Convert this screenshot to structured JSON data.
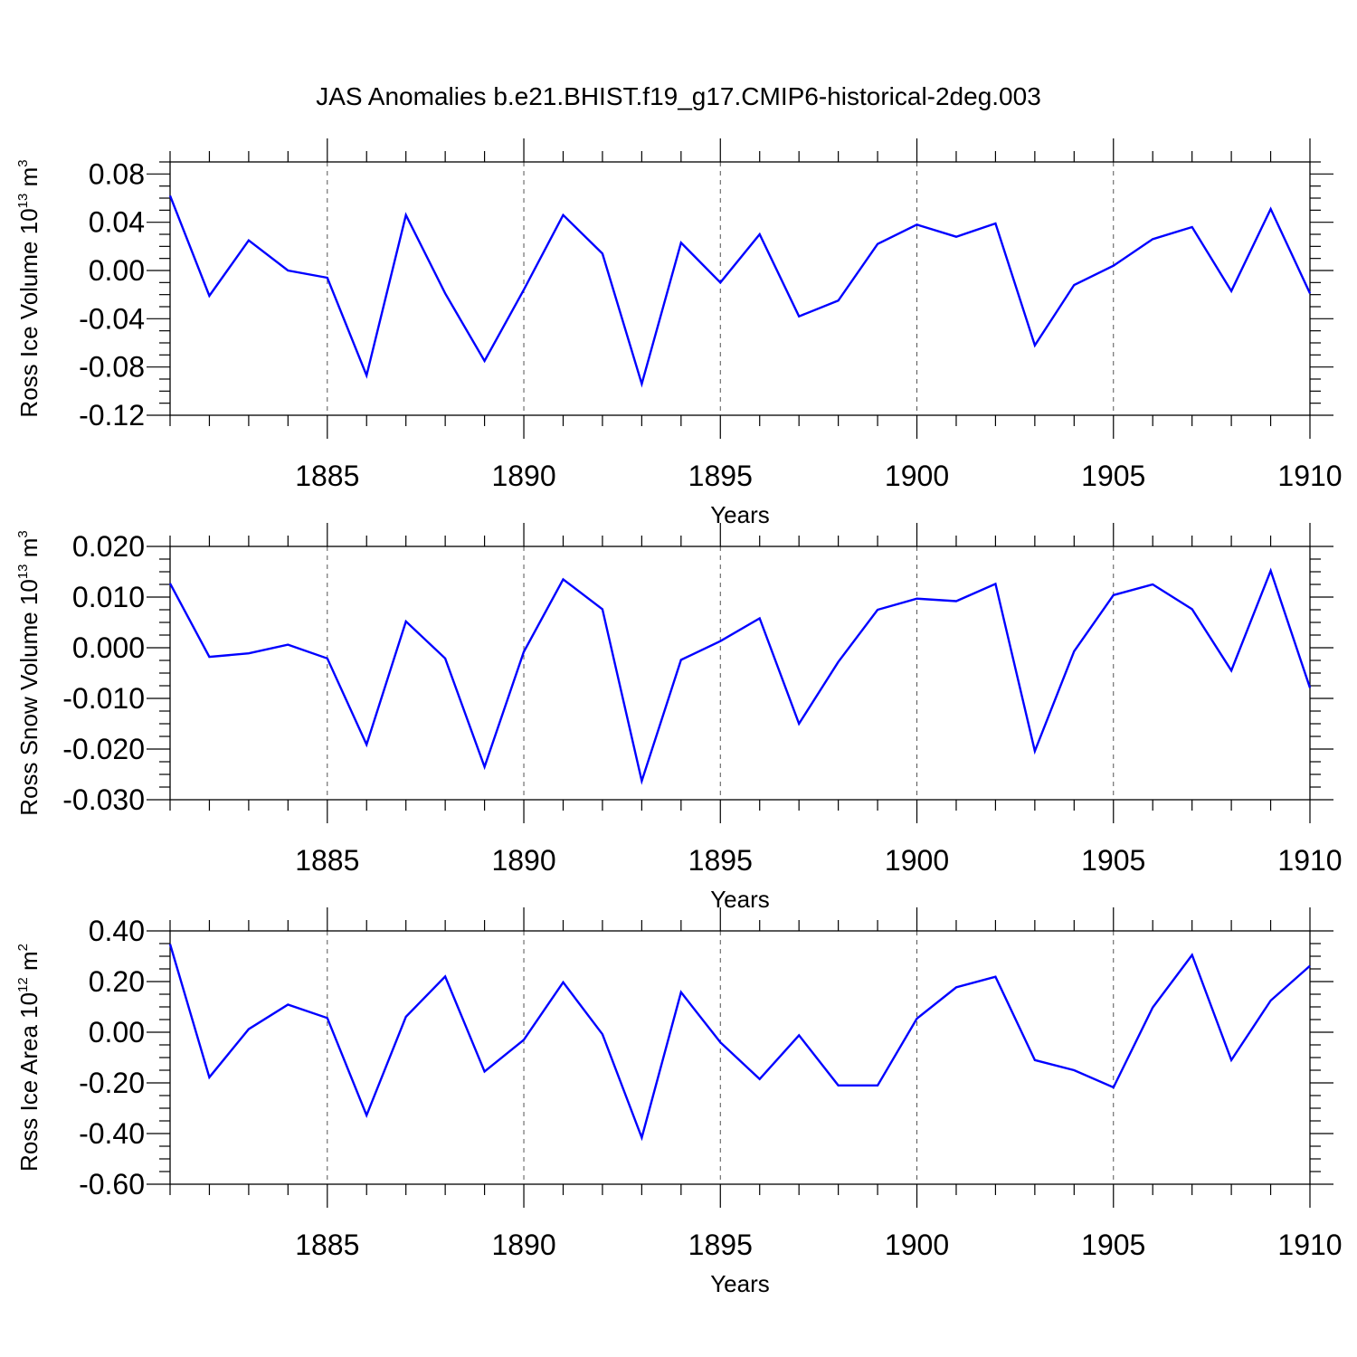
{
  "title": "JAS Anomalies b.e21.BHIST.f19_g17.CMIP6-historical-2deg.003",
  "colors": {
    "line": "#0000ff",
    "axis": "#000000",
    "grid": "#555555"
  },
  "chart_data": [
    {
      "type": "line",
      "ylabel_main": "Ross Ice Volume 10",
      "ylabel_exp": "13",
      "ylabel_unit": " m",
      "ylabel_unit_exp": "3",
      "xlabel": "Years",
      "xlim": [
        1881,
        1910
      ],
      "ylim": [
        -0.12,
        0.09
      ],
      "yticks": [
        -0.12,
        -0.08,
        -0.04,
        0.0,
        0.04,
        0.08
      ],
      "ytick_labels": [
        "-0.12",
        "-0.08",
        "-0.04",
        "0.00",
        "0.04",
        "0.08"
      ],
      "xticks": [
        1885,
        1890,
        1895,
        1900,
        1905,
        1910
      ],
      "xtick_labels": [
        "1885",
        "1890",
        "1895",
        "1900",
        "1905",
        "1910"
      ],
      "grid": "vertical dashed",
      "x": [
        1881,
        1882,
        1883,
        1884,
        1885,
        1886,
        1887,
        1888,
        1889,
        1890,
        1891,
        1892,
        1893,
        1894,
        1895,
        1896,
        1897,
        1898,
        1899,
        1900,
        1901,
        1902,
        1903,
        1904,
        1905,
        1906,
        1907,
        1908,
        1909,
        1910
      ],
      "values": [
        0.062,
        -0.021,
        0.025,
        0.0,
        -0.006,
        -0.087,
        0.046,
        -0.019,
        -0.075,
        -0.016,
        0.046,
        0.014,
        -0.094,
        0.023,
        -0.01,
        0.03,
        -0.038,
        -0.025,
        0.022,
        0.038,
        0.028,
        0.039,
        -0.062,
        -0.012,
        0.004,
        0.026,
        0.036,
        -0.017,
        0.051,
        -0.019
      ]
    },
    {
      "type": "line",
      "ylabel_main": "Ross Snow Volume 10",
      "ylabel_exp": "13",
      "ylabel_unit": " m",
      "ylabel_unit_exp": "3",
      "xlabel": "Years",
      "xlim": [
        1881,
        1910
      ],
      "ylim": [
        -0.03,
        0.02
      ],
      "yticks": [
        -0.03,
        -0.02,
        -0.01,
        0.0,
        0.01,
        0.02
      ],
      "ytick_labels": [
        "-0.030",
        "-0.020",
        "-0.010",
        "0.000",
        "0.010",
        "0.020"
      ],
      "xticks": [
        1885,
        1890,
        1895,
        1900,
        1905,
        1910
      ],
      "xtick_labels": [
        "1885",
        "1890",
        "1895",
        "1900",
        "1905",
        "1910"
      ],
      "grid": "vertical dashed",
      "x": [
        1881,
        1882,
        1883,
        1884,
        1885,
        1886,
        1887,
        1888,
        1889,
        1890,
        1891,
        1892,
        1893,
        1894,
        1895,
        1896,
        1897,
        1898,
        1899,
        1900,
        1901,
        1902,
        1903,
        1904,
        1905,
        1906,
        1907,
        1908,
        1909,
        1910
      ],
      "values": [
        0.0127,
        -0.0018,
        -0.0011,
        0.0006,
        -0.0021,
        -0.0191,
        0.0052,
        -0.0021,
        -0.0235,
        -0.0008,
        0.0135,
        0.0076,
        -0.0263,
        -0.0024,
        0.0013,
        0.0058,
        -0.015,
        -0.0028,
        0.0075,
        0.0097,
        0.0092,
        0.0126,
        -0.0204,
        -0.0007,
        0.0104,
        0.0125,
        0.0076,
        -0.0045,
        0.0152,
        -0.0079
      ]
    },
    {
      "type": "line",
      "ylabel_main": "Ross Ice Area 10",
      "ylabel_exp": "12",
      "ylabel_unit": " m",
      "ylabel_unit_exp": "2",
      "xlabel": "Years",
      "xlim": [
        1881,
        1910
      ],
      "ylim": [
        -0.6,
        0.4
      ],
      "yticks": [
        -0.6,
        -0.4,
        -0.2,
        0.0,
        0.2,
        0.4
      ],
      "ytick_labels": [
        "-0.60",
        "-0.40",
        "-0.20",
        "0.00",
        "0.20",
        "0.40"
      ],
      "xticks": [
        1885,
        1890,
        1895,
        1900,
        1905,
        1910
      ],
      "xtick_labels": [
        "1885",
        "1890",
        "1895",
        "1900",
        "1905",
        "1910"
      ],
      "grid": "vertical dashed",
      "x": [
        1881,
        1882,
        1883,
        1884,
        1885,
        1886,
        1887,
        1888,
        1889,
        1890,
        1891,
        1892,
        1893,
        1894,
        1895,
        1896,
        1897,
        1898,
        1899,
        1900,
        1901,
        1902,
        1903,
        1904,
        1905,
        1906,
        1907,
        1908,
        1909,
        1910
      ],
      "values": [
        0.348,
        -0.178,
        0.012,
        0.109,
        0.056,
        -0.328,
        0.061,
        0.22,
        -0.155,
        -0.03,
        0.197,
        -0.008,
        -0.416,
        0.158,
        -0.04,
        -0.185,
        -0.012,
        -0.21,
        -0.21,
        0.054,
        0.177,
        0.219,
        -0.11,
        -0.15,
        -0.218,
        0.098,
        0.305,
        -0.11,
        0.125,
        0.262
      ]
    }
  ]
}
